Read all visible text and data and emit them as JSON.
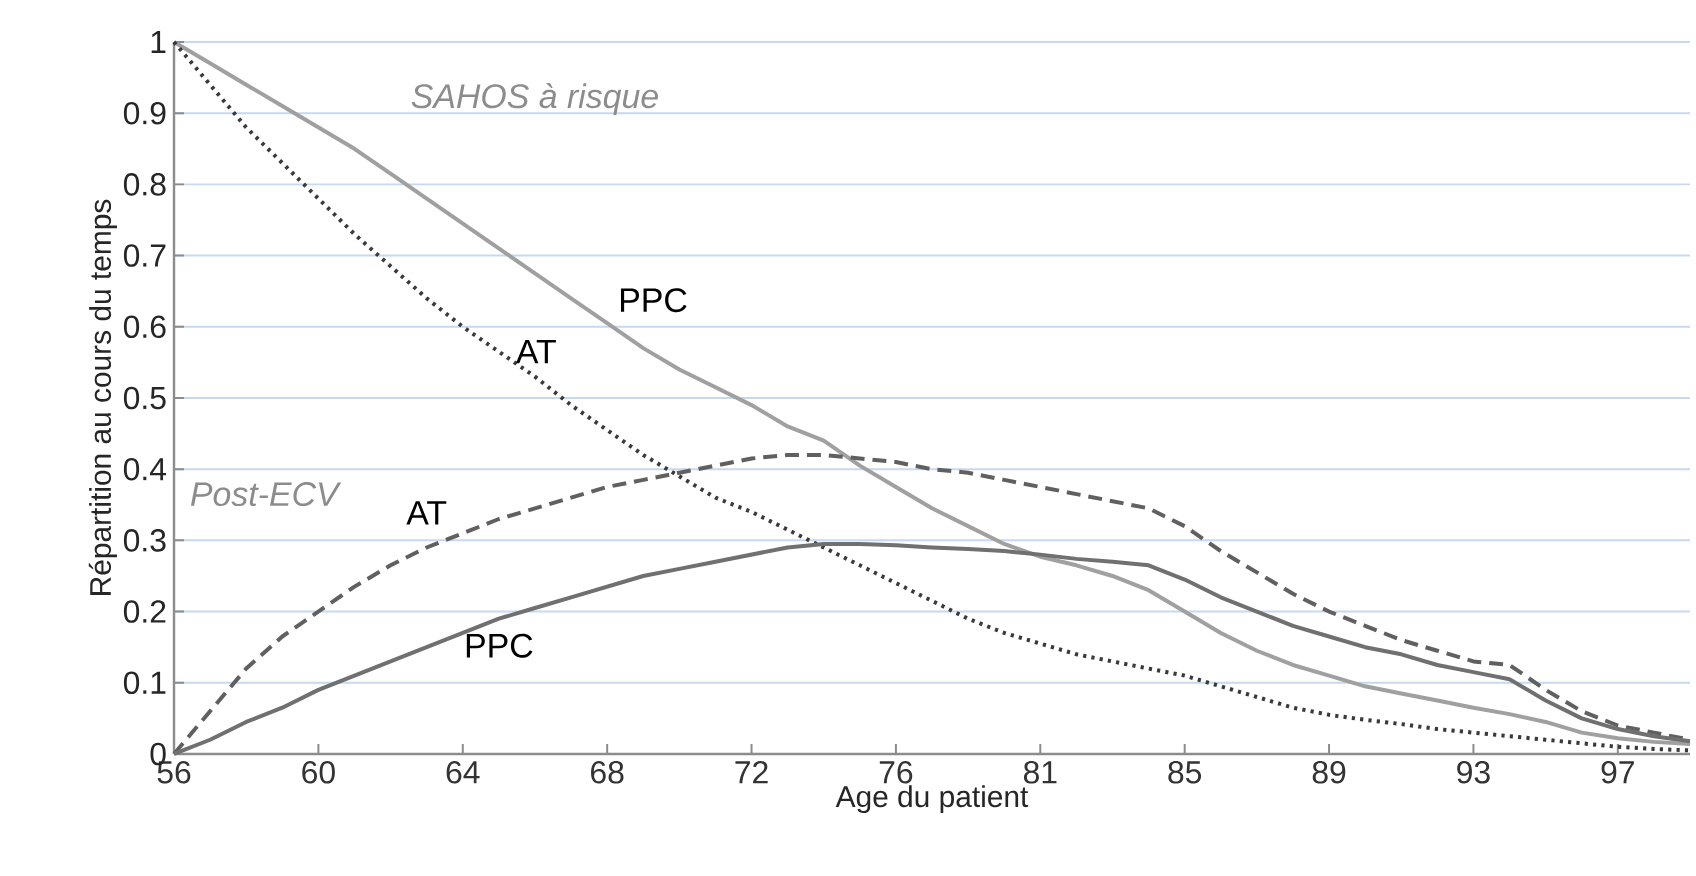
{
  "chart_data": {
    "type": "line",
    "xlabel": "Age du patient",
    "ylabel": "Répartition au cours du temps",
    "categories": [
      "56",
      null,
      null,
      null,
      "60",
      null,
      null,
      null,
      "64",
      null,
      null,
      null,
      "68",
      null,
      null,
      null,
      "72",
      null,
      null,
      null,
      "76",
      null,
      null,
      null,
      "81",
      null,
      null,
      null,
      "85",
      null,
      null,
      null,
      "89",
      null,
      null,
      null,
      "93",
      null,
      null,
      null,
      "97",
      null,
      null
    ],
    "ylim": [
      0,
      1
    ],
    "yticks": [
      0,
      0.1,
      0.2,
      0.3,
      0.4,
      0.5,
      0.6,
      0.7,
      0.8,
      0.9,
      1
    ],
    "grid": "y",
    "annotations": [
      "SAHOS à risque",
      "Post-ECV"
    ],
    "series": [
      {
        "name": "PPC",
        "color": "#a0a0a0",
        "line_style": "solid",
        "values": [
          1.0,
          0.97,
          0.94,
          0.91,
          0.88,
          0.85,
          0.815,
          0.78,
          0.745,
          0.71,
          0.675,
          0.64,
          0.605,
          0.57,
          0.54,
          0.515,
          0.49,
          0.46,
          0.44,
          0.405,
          0.375,
          0.345,
          0.32,
          0.295,
          0.277,
          0.265,
          0.25,
          0.23,
          0.2,
          0.17,
          0.145,
          0.125,
          0.11,
          0.095,
          0.085,
          0.075,
          0.065,
          0.056,
          0.045,
          0.03,
          0.022,
          0.017,
          0.014
        ]
      },
      {
        "name": "AT",
        "color": "#3a3a3a",
        "line_style": "dotted",
        "values": [
          1.0,
          0.94,
          0.88,
          0.83,
          0.78,
          0.73,
          0.685,
          0.64,
          0.6,
          0.565,
          0.53,
          0.49,
          0.455,
          0.42,
          0.39,
          0.36,
          0.34,
          0.315,
          0.29,
          0.265,
          0.24,
          0.215,
          0.19,
          0.17,
          0.155,
          0.14,
          0.13,
          0.12,
          0.11,
          0.095,
          0.08,
          0.065,
          0.055,
          0.048,
          0.042,
          0.035,
          0.03,
          0.025,
          0.02,
          0.015,
          0.01,
          0.007,
          0.005
        ]
      },
      {
        "name": "AT",
        "color": "#606060",
        "line_style": "dashed",
        "values": [
          0,
          0.06,
          0.12,
          0.165,
          0.2,
          0.235,
          0.265,
          0.29,
          0.31,
          0.33,
          0.345,
          0.36,
          0.375,
          0.385,
          0.395,
          0.405,
          0.415,
          0.42,
          0.42,
          0.415,
          0.41,
          0.4,
          0.395,
          0.385,
          0.375,
          0.365,
          0.355,
          0.345,
          0.32,
          0.285,
          0.255,
          0.225,
          0.2,
          0.18,
          0.16,
          0.145,
          0.13,
          0.125,
          0.09,
          0.06,
          0.04,
          0.03,
          0.02
        ]
      },
      {
        "name": "PPC",
        "color": "#707070",
        "line_style": "solid",
        "values": [
          0,
          0.02,
          0.045,
          0.065,
          0.09,
          0.11,
          0.13,
          0.15,
          0.17,
          0.19,
          0.205,
          0.22,
          0.235,
          0.25,
          0.26,
          0.27,
          0.28,
          0.29,
          0.295,
          0.295,
          0.293,
          0.29,
          0.288,
          0.285,
          0.28,
          0.274,
          0.27,
          0.265,
          0.245,
          0.22,
          0.2,
          0.18,
          0.165,
          0.15,
          0.14,
          0.125,
          0.115,
          0.105,
          0.075,
          0.05,
          0.035,
          0.025,
          0.018
        ]
      }
    ]
  }
}
